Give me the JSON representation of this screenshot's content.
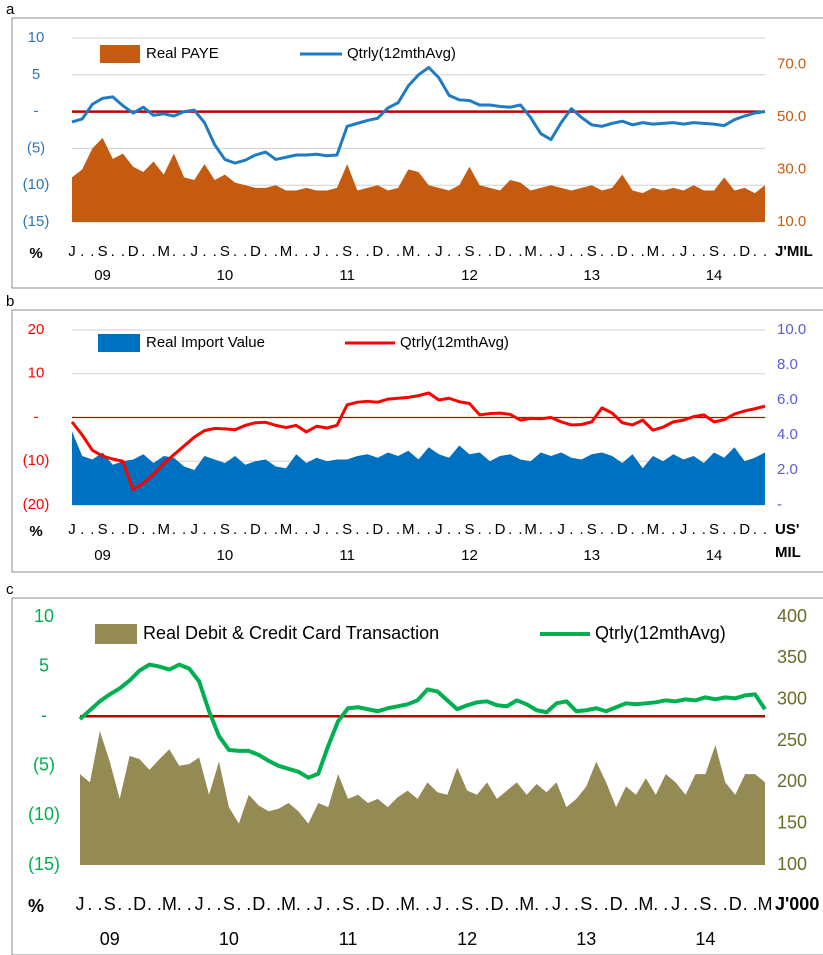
{
  "chart_data": [
    {
      "type": "combo",
      "panel_label": "a",
      "ylabel": "%",
      "y2label": [
        "J'MIL"
      ],
      "categories": [
        "J",
        ".",
        ".",
        "S",
        ".",
        ".",
        "D",
        ".",
        ".",
        "M",
        ".",
        ".",
        "J",
        ".",
        ".",
        "S",
        ".",
        ".",
        "D",
        ".",
        ".",
        "M",
        ".",
        ".",
        "J",
        ".",
        ".",
        "S",
        ".",
        ".",
        "D",
        ".",
        ".",
        "M",
        ".",
        ".",
        "J",
        ".",
        ".",
        "S",
        ".",
        ".",
        "D",
        ".",
        ".",
        "M",
        ".",
        ".",
        "J",
        ".",
        ".",
        "S",
        ".",
        ".",
        "D",
        ".",
        ".",
        "M",
        ".",
        ".",
        "J",
        ".",
        ".",
        "S",
        ".",
        ".",
        "D",
        ".",
        "."
      ],
      "year_labels": [
        "09",
        "10",
        "11",
        "12",
        "13",
        "14"
      ],
      "series": [
        {
          "name": "Real PAYE",
          "kind": "area",
          "axis": "y2",
          "color": "#c55a11",
          "values": [
            27,
            30,
            38,
            42,
            34,
            36,
            31,
            29,
            33,
            28,
            36,
            27,
            26,
            32,
            26,
            28,
            25,
            24,
            23,
            23,
            24,
            22,
            22,
            23,
            22,
            22,
            23,
            32,
            22,
            23,
            24,
            22,
            23,
            30,
            29,
            24,
            23,
            22,
            24,
            31,
            24,
            23,
            22,
            26,
            25,
            22,
            23,
            24,
            23,
            22,
            23,
            24,
            22,
            23,
            28,
            22,
            21,
            23,
            22,
            23,
            22,
            24,
            22,
            22,
            27,
            22,
            23,
            21,
            24
          ]
        },
        {
          "name": "Qtrly(12mthAvg)",
          "kind": "line",
          "color": "#1f7bc4",
          "values": [
            -1.4,
            -1.0,
            1.0,
            1.8,
            2.0,
            0.8,
            -0.2,
            0.6,
            -0.5,
            -0.3,
            -0.6,
            0.0,
            0.2,
            -1.5,
            -4.5,
            -6.5,
            -7.0,
            -6.6,
            -5.9,
            -5.5,
            -6.5,
            -6.2,
            -5.9,
            -5.9,
            -5.8,
            -6.0,
            -5.9,
            -2.0,
            -1.6,
            -1.2,
            -0.9,
            0.5,
            1.2,
            3.5,
            5.0,
            6.0,
            4.6,
            2.2,
            1.6,
            1.5,
            0.9,
            0.9,
            0.7,
            0.6,
            0.9,
            -0.8,
            -3.0,
            -3.8,
            -1.5,
            0.4,
            -0.8,
            -1.8,
            -2.0,
            -1.6,
            -1.3,
            -1.8,
            -1.5,
            -1.7,
            -1.6,
            -1.5,
            -1.7,
            -1.5,
            -1.6,
            -1.7,
            -1.9,
            -1.1,
            -0.6,
            -0.2,
            0.0
          ]
        }
      ],
      "ylim": [
        -15,
        10
      ],
      "yticks": [
        10,
        5,
        {
          "value": 0,
          "label": "-"
        },
        {
          "value": -5,
          "label": "(5)"
        },
        {
          "value": -10,
          "label": "(10)"
        },
        {
          "value": -15,
          "label": "(15)"
        }
      ],
      "y2lim": [
        10,
        80
      ],
      "y2ticks": [
        {
          "value": 70,
          "label": "70.0"
        },
        {
          "value": 50,
          "label": "50.0"
        },
        {
          "value": 30,
          "label": "30.0"
        },
        {
          "value": 10,
          "label": "10.0"
        }
      ],
      "ytick_color": "#2e75b6",
      "y2tick_color": "#c55a11",
      "reference_line": {
        "value": 0,
        "color": "#c00000"
      },
      "grid": true
    },
    {
      "type": "combo",
      "panel_label": "b",
      "ylabel": "%",
      "y2label": [
        "US'",
        "MIL"
      ],
      "categories": [
        "J",
        ".",
        ".",
        "S",
        ".",
        ".",
        "D",
        ".",
        ".",
        "M",
        ".",
        ".",
        "J",
        ".",
        ".",
        "S",
        ".",
        ".",
        "D",
        ".",
        ".",
        "M",
        ".",
        ".",
        "J",
        ".",
        ".",
        "S",
        ".",
        ".",
        "D",
        ".",
        ".",
        "M",
        ".",
        ".",
        "J",
        ".",
        ".",
        "S",
        ".",
        ".",
        "D",
        ".",
        ".",
        "M",
        ".",
        ".",
        "J",
        ".",
        ".",
        "S",
        ".",
        ".",
        "D",
        ".",
        ".",
        "M",
        ".",
        ".",
        "J",
        ".",
        ".",
        "S",
        ".",
        ".",
        "D",
        ".",
        "."
      ],
      "year_labels": [
        "09",
        "10",
        "11",
        "12",
        "13",
        "14"
      ],
      "series": [
        {
          "name": "Real Import Value",
          "kind": "area",
          "axis": "y2",
          "color": "#0070c0",
          "values": [
            4.2,
            2.8,
            2.6,
            3.0,
            2.3,
            2.5,
            2.6,
            2.9,
            2.4,
            2.8,
            2.7,
            2.2,
            2.0,
            2.8,
            2.6,
            2.4,
            2.8,
            2.3,
            2.5,
            2.6,
            2.2,
            2.1,
            2.9,
            2.4,
            2.7,
            2.5,
            2.6,
            2.6,
            2.8,
            2.9,
            2.7,
            3.0,
            2.8,
            3.1,
            2.6,
            3.3,
            2.9,
            2.7,
            3.4,
            2.9,
            3.0,
            2.5,
            2.8,
            2.9,
            2.6,
            2.5,
            3.0,
            2.8,
            3.0,
            2.7,
            2.6,
            2.9,
            3.0,
            2.8,
            2.4,
            2.9,
            2.1,
            2.8,
            2.5,
            2.9,
            2.6,
            2.8,
            2.4,
            3.0,
            2.7,
            3.3,
            2.5,
            2.7,
            3.0
          ]
        },
        {
          "name": "Qtrly(12mthAvg)",
          "kind": "line",
          "color": "#ff0000",
          "values": [
            -1,
            -4,
            -7.5,
            -8.8,
            -9.5,
            -10,
            -16.5,
            -15,
            -13,
            -10.5,
            -8.5,
            -6.5,
            -4.5,
            -3,
            -2.5,
            -2.6,
            -2.8,
            -1.8,
            -1.2,
            -1.1,
            -1.8,
            -2.3,
            -1.8,
            -3.3,
            -2,
            -2.4,
            -1.8,
            2.9,
            3.5,
            3.7,
            3.5,
            4.2,
            4.4,
            4.6,
            5.0,
            5.6,
            4.0,
            4.4,
            3.6,
            3.2,
            0.6,
            0.9,
            1.0,
            0.7,
            -0.6,
            -0.2,
            -0.3,
            0.0,
            -1.0,
            -1.7,
            -1.6,
            -1.0,
            2.2,
            1.0,
            -1.2,
            -1.7,
            -0.6,
            -2.9,
            -2.2,
            -1.0,
            -0.6,
            0.2,
            0.6,
            -1.0,
            -0.5,
            0.8,
            1.5,
            2.0,
            2.6
          ]
        }
      ],
      "ylim": [
        -20,
        20
      ],
      "yticks": [
        20,
        10,
        {
          "value": 0,
          "label": "-"
        },
        {
          "value": -10,
          "label": "(10)"
        },
        {
          "value": -20,
          "label": "(20)"
        }
      ],
      "y2lim": [
        0,
        10
      ],
      "y2ticks": [
        {
          "value": 10,
          "label": "10.0"
        },
        {
          "value": 8,
          "label": "8.0"
        },
        {
          "value": 6,
          "label": "6.0"
        },
        {
          "value": 4,
          "label": "4.0"
        },
        {
          "value": 2,
          "label": "2.0"
        },
        {
          "value": 0,
          "label": "-"
        }
      ],
      "ytick_color": "#ff0000",
      "y2tick_color": "#5b5bd6",
      "reference_line": {
        "value": 0,
        "color": "#c00000"
      },
      "grid": true
    },
    {
      "type": "combo",
      "panel_label": "c",
      "ylabel": "%",
      "y2label": [
        "J'000"
      ],
      "categories": [
        "J",
        ".",
        ".",
        "S",
        ".",
        ".",
        "D",
        ".",
        ".",
        "M",
        ".",
        ".",
        "J",
        ".",
        ".",
        "S",
        ".",
        ".",
        "D",
        ".",
        ".",
        "M",
        ".",
        ".",
        "J",
        ".",
        ".",
        "S",
        ".",
        ".",
        "D",
        ".",
        ".",
        "M",
        ".",
        ".",
        "J",
        ".",
        ".",
        "S",
        ".",
        ".",
        "D",
        ".",
        ".",
        "M",
        ".",
        ".",
        "J",
        ".",
        ".",
        "S",
        ".",
        ".",
        "D",
        ".",
        ".",
        "M",
        ".",
        ".",
        "J",
        ".",
        ".",
        "S",
        ".",
        ".",
        "D",
        ".",
        ".",
        "M"
      ],
      "year_labels": [
        "09",
        "10",
        "11",
        "12",
        "13",
        "14"
      ],
      "series": [
        {
          "name": "Real Debit & Credit Card Transaction",
          "kind": "area",
          "axis": "y2",
          "color": "#948a54",
          "values": [
            210,
            200,
            262,
            225,
            180,
            232,
            228,
            215,
            228,
            240,
            220,
            222,
            230,
            185,
            225,
            170,
            150,
            185,
            172,
            165,
            168,
            175,
            165,
            150,
            175,
            170,
            210,
            180,
            185,
            175,
            180,
            170,
            182,
            190,
            180,
            200,
            188,
            185,
            218,
            190,
            185,
            200,
            180,
            190,
            200,
            185,
            198,
            188,
            200,
            170,
            180,
            195,
            225,
            200,
            170,
            195,
            185,
            205,
            185,
            210,
            200,
            185,
            210,
            210,
            245,
            200,
            185,
            210,
            210,
            200
          ]
        },
        {
          "name": "Qtrly(12mthAvg)",
          "kind": "line",
          "color": "#00b050",
          "values": [
            -0.3,
            0.6,
            1.5,
            2.2,
            2.8,
            3.6,
            4.6,
            5.2,
            5.0,
            4.7,
            5.2,
            4.8,
            3.5,
            0.5,
            -2.0,
            -3.4,
            -3.5,
            -3.5,
            -3.9,
            -4.5,
            -5.0,
            -5.3,
            -5.6,
            -6.2,
            -5.8,
            -3.0,
            -0.5,
            0.8,
            0.9,
            0.7,
            0.5,
            0.8,
            1.0,
            1.2,
            1.6,
            2.7,
            2.5,
            1.6,
            0.7,
            1.1,
            1.4,
            1.5,
            1.1,
            1.0,
            1.6,
            1.2,
            0.6,
            0.4,
            1.3,
            1.5,
            0.5,
            0.6,
            0.8,
            0.5,
            0.9,
            1.3,
            1.2,
            1.3,
            1.4,
            1.6,
            1.5,
            1.7,
            1.6,
            1.9,
            1.7,
            1.9,
            1.8,
            2.1,
            2.2,
            0.7
          ]
        }
      ],
      "ylim": [
        -15,
        10
      ],
      "yticks": [
        10,
        5,
        {
          "value": 0,
          "label": "-"
        },
        {
          "value": -5,
          "label": "(5)"
        },
        {
          "value": -10,
          "label": "(10)"
        },
        {
          "value": -15,
          "label": "(15)"
        }
      ],
      "y2lim": [
        100,
        400
      ],
      "y2ticks": [
        400,
        350,
        300,
        250,
        200,
        150,
        100
      ],
      "ytick_color": "#00b050",
      "y2tick_color": "#6b6b2a",
      "reference_line": {
        "value": 0,
        "color": "#c00000"
      },
      "grid": false
    }
  ]
}
